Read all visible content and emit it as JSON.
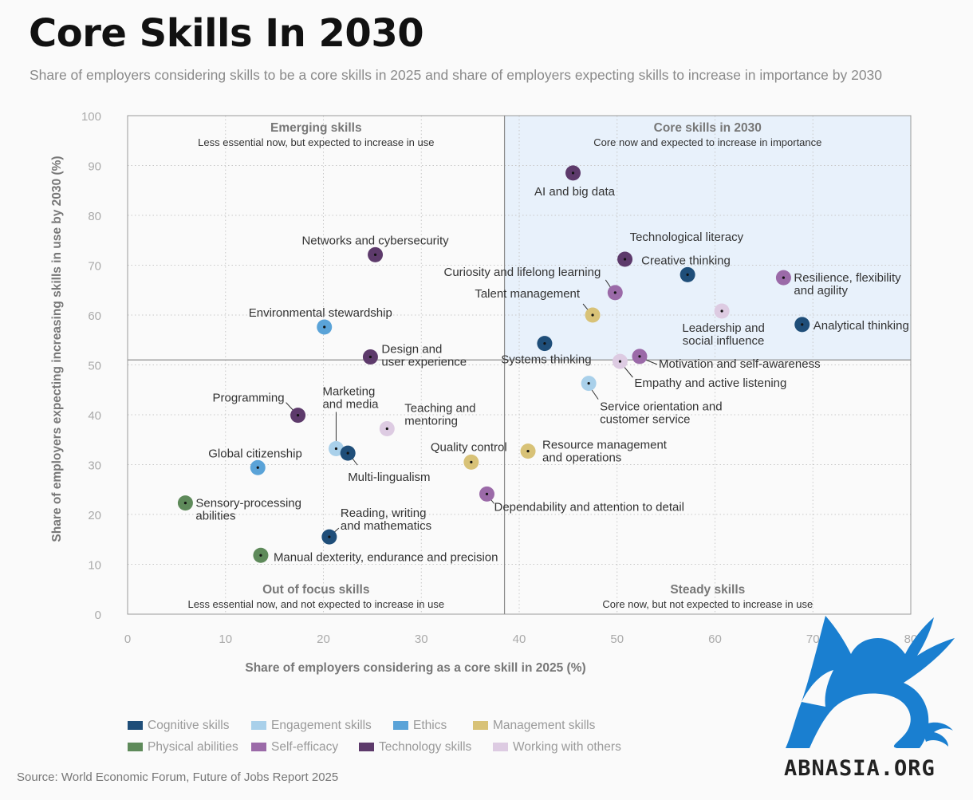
{
  "header": {
    "title": "Core Skills In 2030",
    "subtitle": "Share of employers considering skills to be a core skills in 2025 and share of employers expecting skills to increase in importance by 2030"
  },
  "source": "Source: World Economic Forum, Future of Jobs Report 2025",
  "logo_text": "ABNASIA.ORG",
  "colors": {
    "cognitive": "#1f4e79",
    "engagement": "#a9d0ea",
    "ethics": "#5aa3d8",
    "management": "#d8c277",
    "physical": "#5e8a5a",
    "self_efficacy": "#9b6aa8",
    "technology": "#5d3a6b",
    "working_with_others": "#ddcbe2",
    "quadrant_highlight": "#e8f1fb",
    "logo": "#1a7fd0"
  },
  "legend": [
    {
      "key": "cognitive",
      "label": "Cognitive skills"
    },
    {
      "key": "engagement",
      "label": "Engagement skills"
    },
    {
      "key": "ethics",
      "label": "Ethics"
    },
    {
      "key": "management",
      "label": "Management skills"
    },
    {
      "key": "physical",
      "label": "Physical abilities"
    },
    {
      "key": "self_efficacy",
      "label": "Self-efficacy"
    },
    {
      "key": "technology",
      "label": "Technology skills"
    },
    {
      "key": "working_with_others",
      "label": "Working with others"
    }
  ],
  "chart_data": {
    "type": "scatter",
    "xlabel": "Share of employers considering as a core skill in 2025 (%)",
    "ylabel": "Share of employers expecting increasing skills in use by 2030 (%)",
    "xlim": [
      0,
      80
    ],
    "ylim": [
      0,
      100
    ],
    "xticks": [
      0,
      10,
      20,
      30,
      40,
      50,
      60,
      70,
      80
    ],
    "yticks": [
      0,
      10,
      20,
      30,
      40,
      50,
      60,
      70,
      80,
      90,
      100
    ],
    "x_divider": 38.5,
    "y_divider": 51,
    "quadrants": [
      {
        "name": "Emerging skills",
        "desc": "Less essential now, but expected to increase in use",
        "position": "top-left"
      },
      {
        "name": "Core skills in 2030",
        "desc": "Core now and expected to increase in importance",
        "position": "top-right"
      },
      {
        "name": "Out of focus skills",
        "desc": "Less essential now, and not expected to increase in use",
        "position": "bottom-left"
      },
      {
        "name": "Steady skills",
        "desc": "Core now, but not expected to increase in use",
        "position": "bottom-right"
      }
    ],
    "points": [
      {
        "label": "AI and big data",
        "x": 45.5,
        "y": 88.5,
        "category": "technology"
      },
      {
        "label": "Technological literacy",
        "x": 50.8,
        "y": 71.2,
        "category": "technology"
      },
      {
        "label": "Creative thinking",
        "x": 57.2,
        "y": 68.1,
        "category": "cognitive"
      },
      {
        "label": "Resilience, flexibility and agility",
        "x": 67.0,
        "y": 67.5,
        "category": "self_efficacy"
      },
      {
        "label": "Curiosity and lifelong learning",
        "x": 49.8,
        "y": 64.5,
        "category": "self_efficacy"
      },
      {
        "label": "Talent management",
        "x": 47.5,
        "y": 60.0,
        "category": "management"
      },
      {
        "label": "Leadership and social influence",
        "x": 60.7,
        "y": 60.8,
        "category": "working_with_others"
      },
      {
        "label": "Analytical thinking",
        "x": 68.9,
        "y": 58.1,
        "category": "cognitive"
      },
      {
        "label": "Systems thinking",
        "x": 42.6,
        "y": 54.3,
        "category": "cognitive"
      },
      {
        "label": "Motivation and self-awareness",
        "x": 52.3,
        "y": 51.7,
        "category": "self_efficacy"
      },
      {
        "label": "Empathy and active listening",
        "x": 50.3,
        "y": 50.7,
        "category": "working_with_others"
      },
      {
        "label": "Service orientation and customer service",
        "x": 47.1,
        "y": 46.3,
        "category": "engagement"
      },
      {
        "label": "Networks and cybersecurity",
        "x": 25.3,
        "y": 72.1,
        "category": "technology"
      },
      {
        "label": "Environmental stewardship",
        "x": 20.1,
        "y": 57.6,
        "category": "ethics"
      },
      {
        "label": "Design and user experience",
        "x": 24.8,
        "y": 51.6,
        "category": "technology"
      },
      {
        "label": "Programming",
        "x": 17.4,
        "y": 39.9,
        "category": "technology"
      },
      {
        "label": "Marketing and media",
        "x": 21.3,
        "y": 33.2,
        "category": "engagement"
      },
      {
        "label": "Multi-lingualism",
        "x": 22.5,
        "y": 32.3,
        "category": "cognitive"
      },
      {
        "label": "Teaching and mentoring",
        "x": 26.5,
        "y": 37.2,
        "category": "working_with_others"
      },
      {
        "label": "Global citizenship",
        "x": 13.3,
        "y": 29.4,
        "category": "ethics"
      },
      {
        "label": "Quality control",
        "x": 35.1,
        "y": 30.5,
        "category": "management"
      },
      {
        "label": "Resource management and operations",
        "x": 40.9,
        "y": 32.7,
        "category": "management"
      },
      {
        "label": "Sensory-processing abilities",
        "x": 5.9,
        "y": 22.3,
        "category": "physical"
      },
      {
        "label": "Dependability and attention to detail",
        "x": 36.7,
        "y": 24.1,
        "category": "self_efficacy"
      },
      {
        "label": "Reading, writing and mathematics",
        "x": 20.6,
        "y": 15.5,
        "category": "cognitive"
      },
      {
        "label": "Manual dexterity, endurance and precision",
        "x": 13.6,
        "y": 11.8,
        "category": "physical"
      }
    ]
  }
}
